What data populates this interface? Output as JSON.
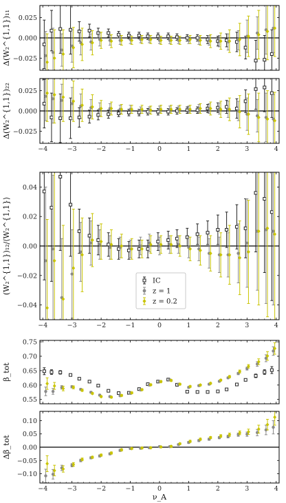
{
  "colors": {
    "ic": "#222222",
    "z1": "#8a8a8a",
    "z02": "#c9c400",
    "zero_line": "#000000"
  },
  "legend": {
    "items": [
      {
        "label": "IC",
        "marker": "open-square"
      },
      {
        "label": "z = 1",
        "marker": "filled-circle"
      },
      {
        "label": "z = 0.2",
        "marker": "filled-diamond"
      }
    ],
    "placement": "lower-center of panel 3"
  },
  "chart_data": [
    {
      "type": "scatter",
      "ylabel": "Δ(W₂^{1,1})₁₁",
      "xlim": [
        -4.1,
        4.1
      ],
      "ylim": [
        -0.04,
        0.04
      ],
      "yticks": [
        "−0.025",
        "0.000",
        "0.025"
      ],
      "xticks": [
        "−4",
        "−3",
        "−2",
        "−1",
        "0",
        "1",
        "2",
        "3",
        "4"
      ],
      "x": [
        -3.9,
        -3.65,
        -3.35,
        -3.0,
        -2.7,
        -2.35,
        -2.05,
        -1.7,
        -1.35,
        -1.0,
        -0.65,
        -0.35,
        0.0,
        0.35,
        0.65,
        1.0,
        1.35,
        1.7,
        2.05,
        2.35,
        2.7,
        3.0,
        3.35,
        3.65,
        3.9
      ],
      "series": [
        {
          "name": "IC",
          "values": [
            -0.008,
            0.009,
            0.011,
            0.01,
            0.008,
            0.009,
            0.006,
            0.006,
            0.004,
            0.003,
            0.003,
            0.002,
            0.002,
            0.002,
            0.001,
            0.0,
            0.0,
            -0.002,
            -0.004,
            -0.003,
            -0.005,
            -0.012,
            -0.028,
            -0.027,
            -0.02
          ],
          "errors": [
            0.03,
            0.025,
            0.03,
            0.03,
            0.012,
            0.008,
            0.006,
            0.005,
            0.004,
            0.004,
            0.004,
            0.004,
            0.004,
            0.004,
            0.004,
            0.004,
            0.004,
            0.005,
            0.006,
            0.008,
            0.012,
            0.014,
            0.025,
            0.03,
            0.03
          ]
        },
        {
          "name": "z = 1",
          "values": [
            -0.022,
            -0.018,
            -0.015,
            -0.01,
            -0.006,
            -0.005,
            -0.002,
            -0.003,
            -0.003,
            -0.002,
            -0.002,
            -0.002,
            -0.003,
            -0.003,
            -0.003,
            -0.003,
            -0.003,
            -0.003,
            -0.004,
            -0.005,
            -0.003,
            0.002,
            0.006,
            0.01,
            0.012
          ],
          "errors": [
            0.03,
            0.03,
            0.02,
            0.02,
            0.015,
            0.01,
            0.008,
            0.006,
            0.005,
            0.005,
            0.004,
            0.004,
            0.004,
            0.004,
            0.004,
            0.004,
            0.005,
            0.006,
            0.007,
            0.01,
            0.012,
            0.02,
            0.02,
            0.03,
            0.03
          ]
        },
        {
          "name": "z = 0.2",
          "values": [
            -0.03,
            -0.025,
            -0.02,
            -0.012,
            -0.008,
            -0.006,
            -0.003,
            -0.004,
            -0.003,
            -0.003,
            -0.002,
            -0.002,
            -0.003,
            -0.003,
            -0.003,
            -0.002,
            -0.003,
            -0.004,
            -0.004,
            -0.004,
            -0.002,
            0.002,
            0.004,
            0.008,
            0.012
          ],
          "errors": [
            0.035,
            0.035,
            0.03,
            0.025,
            0.02,
            0.015,
            0.01,
            0.008,
            0.006,
            0.005,
            0.005,
            0.005,
            0.005,
            0.005,
            0.005,
            0.005,
            0.006,
            0.008,
            0.01,
            0.014,
            0.02,
            0.025,
            0.03,
            0.035,
            0.035
          ]
        }
      ]
    },
    {
      "type": "scatter",
      "ylabel": "Δ(W₂^{1,1})₂₂",
      "xlim": [
        -4.1,
        4.1
      ],
      "ylim": [
        -0.04,
        0.04
      ],
      "yticks": [
        "−0.025",
        "0.000",
        "0.025"
      ],
      "xticks": [
        "−4",
        "−3",
        "−2",
        "−1",
        "0",
        "1",
        "2",
        "3",
        "4"
      ],
      "x": [
        -3.9,
        -3.65,
        -3.35,
        -3.0,
        -2.7,
        -2.35,
        -2.05,
        -1.7,
        -1.35,
        -1.0,
        -0.65,
        -0.35,
        0.0,
        0.35,
        0.65,
        1.0,
        1.35,
        1.7,
        2.05,
        2.35,
        2.7,
        3.0,
        3.35,
        3.65,
        3.9
      ],
      "series": [
        {
          "name": "IC",
          "values": [
            0.009,
            -0.008,
            -0.009,
            -0.009,
            -0.008,
            -0.007,
            -0.005,
            -0.004,
            -0.003,
            -0.002,
            -0.002,
            -0.001,
            -0.001,
            -0.001,
            0.0,
            0.001,
            0.001,
            0.003,
            0.004,
            0.005,
            0.003,
            0.012,
            0.027,
            0.029,
            0.022
          ],
          "errors": [
            0.03,
            0.03,
            0.03,
            0.025,
            0.012,
            0.008,
            0.006,
            0.005,
            0.004,
            0.004,
            0.004,
            0.004,
            0.004,
            0.004,
            0.004,
            0.004,
            0.004,
            0.005,
            0.006,
            0.008,
            0.012,
            0.014,
            0.025,
            0.03,
            0.03
          ]
        },
        {
          "name": "z = 1",
          "values": [
            0.018,
            0.015,
            0.013,
            0.009,
            0.006,
            0.004,
            0.002,
            0.003,
            0.002,
            0.002,
            0.001,
            0.001,
            0.002,
            0.002,
            0.002,
            0.002,
            0.003,
            0.003,
            0.003,
            0.002,
            0.0,
            -0.004,
            -0.006,
            -0.008,
            -0.01
          ],
          "errors": [
            0.03,
            0.03,
            0.02,
            0.02,
            0.015,
            0.01,
            0.008,
            0.006,
            0.005,
            0.005,
            0.004,
            0.004,
            0.004,
            0.004,
            0.004,
            0.004,
            0.005,
            0.006,
            0.007,
            0.01,
            0.012,
            0.02,
            0.02,
            0.03,
            0.03
          ]
        },
        {
          "name": "z = 0.2",
          "values": [
            0.022,
            0.02,
            0.017,
            0.012,
            0.007,
            0.005,
            0.003,
            0.003,
            0.002,
            0.002,
            0.002,
            0.001,
            0.002,
            0.002,
            0.002,
            0.002,
            0.003,
            0.003,
            0.002,
            0.002,
            -0.001,
            -0.004,
            -0.008,
            -0.01,
            -0.012
          ],
          "errors": [
            0.035,
            0.035,
            0.03,
            0.025,
            0.02,
            0.015,
            0.01,
            0.008,
            0.006,
            0.005,
            0.005,
            0.005,
            0.005,
            0.005,
            0.005,
            0.005,
            0.006,
            0.008,
            0.01,
            0.014,
            0.02,
            0.025,
            0.03,
            0.035,
            0.035
          ]
        }
      ]
    },
    {
      "type": "scatter",
      "ylabel": "(W₂^{1,1})₁₂/⟨W₂^{1,1}⟩",
      "xlim": [
        -4.1,
        4.1
      ],
      "ylim": [
        -0.05,
        0.05
      ],
      "yticks": [
        "−0.04",
        "−0.02",
        "0.00",
        "0.02",
        "0.04"
      ],
      "xticks": [
        "−4",
        "−3",
        "−2",
        "−1",
        "0",
        "1",
        "2",
        "3",
        "4"
      ],
      "x": [
        -3.9,
        -3.65,
        -3.35,
        -3.0,
        -2.7,
        -2.35,
        -2.05,
        -1.7,
        -1.35,
        -1.0,
        -0.65,
        -0.35,
        0.0,
        0.35,
        0.65,
        1.0,
        1.35,
        1.7,
        2.05,
        2.35,
        2.7,
        3.0,
        3.35,
        3.65,
        3.9
      ],
      "series": [
        {
          "name": "IC",
          "values": [
            0.037,
            0.026,
            0.047,
            0.028,
            0.01,
            0.007,
            0.004,
            0.001,
            -0.002,
            -0.003,
            -0.002,
            -0.002,
            0.003,
            0.004,
            0.005,
            0.006,
            0.008,
            0.009,
            0.011,
            0.011,
            0.013,
            0.012,
            0.036,
            0.032,
            0.023
          ],
          "errors": [
            0.06,
            0.05,
            0.05,
            0.035,
            0.015,
            0.012,
            0.01,
            0.008,
            0.007,
            0.006,
            0.006,
            0.006,
            0.006,
            0.006,
            0.006,
            0.006,
            0.007,
            0.008,
            0.01,
            0.012,
            0.015,
            0.02,
            0.04,
            0.05,
            0.06
          ]
        },
        {
          "name": "z = 1",
          "values": [
            -0.01,
            -0.002,
            -0.035,
            -0.019,
            -0.004,
            0.002,
            0.001,
            -0.001,
            -0.001,
            -0.002,
            0.0,
            0.002,
            0.0,
            0.001,
            0.001,
            -0.001,
            -0.002,
            -0.005,
            -0.006,
            -0.006,
            -0.005,
            0.002,
            0.01,
            0.011,
            0.01
          ],
          "errors": [
            0.05,
            0.05,
            0.04,
            0.03,
            0.02,
            0.015,
            0.01,
            0.008,
            0.007,
            0.006,
            0.006,
            0.006,
            0.006,
            0.006,
            0.006,
            0.007,
            0.008,
            0.01,
            0.012,
            0.015,
            0.02,
            0.03,
            0.04,
            0.05,
            0.05
          ]
        },
        {
          "name": "z = 0.2",
          "values": [
            -0.042,
            -0.01,
            -0.036,
            -0.015,
            -0.006,
            0.004,
            0.003,
            0.001,
            0.0,
            -0.002,
            -0.002,
            0.001,
            0.001,
            0.001,
            0.0,
            -0.002,
            -0.003,
            -0.005,
            -0.006,
            -0.006,
            -0.008,
            -0.004,
            0.01,
            0.012,
            0.008
          ],
          "errors": [
            0.06,
            0.06,
            0.05,
            0.04,
            0.025,
            0.018,
            0.012,
            0.01,
            0.008,
            0.007,
            0.006,
            0.006,
            0.006,
            0.006,
            0.007,
            0.008,
            0.01,
            0.012,
            0.015,
            0.02,
            0.025,
            0.035,
            0.05,
            0.06,
            0.06
          ]
        }
      ]
    },
    {
      "type": "scatter",
      "ylabel": "β_tot",
      "xlim": [
        -4.1,
        4.1
      ],
      "ylim": [
        0.535,
        0.755
      ],
      "yticks": [
        "0.55",
        "0.60",
        "0.65",
        "0.70",
        "0.75"
      ],
      "xticks": [
        "−4",
        "−3",
        "−2",
        "−1",
        "0",
        "1",
        "2",
        "3",
        "4"
      ],
      "x": [
        -3.9,
        -3.65,
        -3.35,
        -3.0,
        -2.7,
        -2.35,
        -2.05,
        -1.7,
        -1.35,
        -1.0,
        -0.65,
        -0.35,
        0.0,
        0.35,
        0.65,
        1.0,
        1.35,
        1.7,
        2.05,
        2.35,
        2.7,
        3.0,
        3.35,
        3.65,
        3.9
      ],
      "series": [
        {
          "name": "IC",
          "values": [
            0.648,
            0.645,
            0.644,
            0.635,
            0.622,
            0.612,
            0.598,
            0.58,
            0.572,
            0.573,
            0.586,
            0.603,
            0.612,
            0.619,
            0.601,
            0.577,
            0.576,
            0.576,
            0.578,
            0.585,
            0.602,
            0.618,
            0.632,
            0.645,
            0.652
          ],
          "errors": [
            0.012,
            0.008,
            0.006,
            0.004,
            0.003,
            0.003,
            0.003,
            0.003,
            0.003,
            0.003,
            0.003,
            0.003,
            0.003,
            0.003,
            0.003,
            0.003,
            0.003,
            0.003,
            0.003,
            0.003,
            0.003,
            0.004,
            0.006,
            0.008,
            0.012
          ]
        },
        {
          "name": "z = 1",
          "values": [
            0.578,
            0.578,
            0.592,
            0.594,
            0.585,
            0.575,
            0.565,
            0.56,
            0.563,
            0.571,
            0.583,
            0.6,
            0.612,
            0.618,
            0.603,
            0.592,
            0.598,
            0.603,
            0.613,
            0.625,
            0.64,
            0.657,
            0.673,
            0.693,
            0.718
          ],
          "errors": [
            0.015,
            0.01,
            0.006,
            0.004,
            0.003,
            0.003,
            0.003,
            0.003,
            0.003,
            0.003,
            0.003,
            0.003,
            0.003,
            0.003,
            0.003,
            0.003,
            0.003,
            0.003,
            0.003,
            0.003,
            0.004,
            0.005,
            0.008,
            0.012,
            0.015
          ]
        },
        {
          "name": "z = 0.2",
          "values": [
            0.605,
            0.597,
            0.588,
            0.592,
            0.582,
            0.571,
            0.56,
            0.558,
            0.564,
            0.573,
            0.584,
            0.601,
            0.612,
            0.616,
            0.603,
            0.595,
            0.6,
            0.606,
            0.617,
            0.629,
            0.647,
            0.665,
            0.681,
            0.701,
            0.727
          ],
          "errors": [
            0.02,
            0.012,
            0.008,
            0.005,
            0.004,
            0.003,
            0.003,
            0.003,
            0.003,
            0.003,
            0.003,
            0.003,
            0.003,
            0.003,
            0.003,
            0.003,
            0.003,
            0.003,
            0.003,
            0.004,
            0.005,
            0.006,
            0.01,
            0.015,
            0.02
          ]
        }
      ]
    },
    {
      "type": "scatter",
      "ylabel": "Δβ_tot",
      "xlabel": "ν_A",
      "xlim": [
        -4.1,
        4.1
      ],
      "ylim": [
        -0.135,
        0.135
      ],
      "yticks": [
        "−0.10",
        "−0.05",
        "0.00",
        "0.05",
        "0.10"
      ],
      "xticks": [
        "−4",
        "−3",
        "−2",
        "−1",
        "0",
        "1",
        "2",
        "3",
        "4"
      ],
      "x": [
        -3.9,
        -3.65,
        -3.35,
        -3.0,
        -2.7,
        -2.35,
        -2.05,
        -1.7,
        -1.35,
        -1.0,
        -0.65,
        -0.35,
        0.0,
        0.35,
        0.65,
        1.0,
        1.35,
        1.7,
        2.05,
        2.35,
        2.7,
        3.0,
        3.35,
        3.65,
        3.9
      ],
      "series": [
        {
          "name": "z = 1",
          "values": [
            -0.108,
            -0.102,
            -0.078,
            -0.068,
            -0.05,
            -0.04,
            -0.033,
            -0.025,
            -0.012,
            -0.005,
            -0.004,
            -0.002,
            0.002,
            0.002,
            0.01,
            0.018,
            0.025,
            0.03,
            0.036,
            0.04,
            0.047,
            0.049,
            0.055,
            0.065,
            0.075
          ],
          "errors": [
            0.025,
            0.018,
            0.01,
            0.006,
            0.005,
            0.004,
            0.004,
            0.004,
            0.004,
            0.003,
            0.003,
            0.003,
            0.003,
            0.003,
            0.003,
            0.004,
            0.004,
            0.004,
            0.004,
            0.005,
            0.006,
            0.008,
            0.012,
            0.018,
            0.025
          ]
        },
        {
          "name": "z = 0.2",
          "values": [
            -0.062,
            -0.088,
            -0.082,
            -0.065,
            -0.046,
            -0.038,
            -0.03,
            -0.022,
            -0.01,
            -0.005,
            -0.003,
            -0.002,
            0.001,
            0.003,
            0.013,
            0.022,
            0.03,
            0.036,
            0.042,
            0.047,
            0.054,
            0.058,
            0.068,
            0.085,
            0.113
          ],
          "errors": [
            0.03,
            0.02,
            0.012,
            0.007,
            0.005,
            0.004,
            0.004,
            0.004,
            0.004,
            0.003,
            0.003,
            0.003,
            0.003,
            0.003,
            0.003,
            0.004,
            0.004,
            0.004,
            0.005,
            0.006,
            0.007,
            0.01,
            0.015,
            0.02,
            0.03
          ]
        }
      ]
    }
  ]
}
